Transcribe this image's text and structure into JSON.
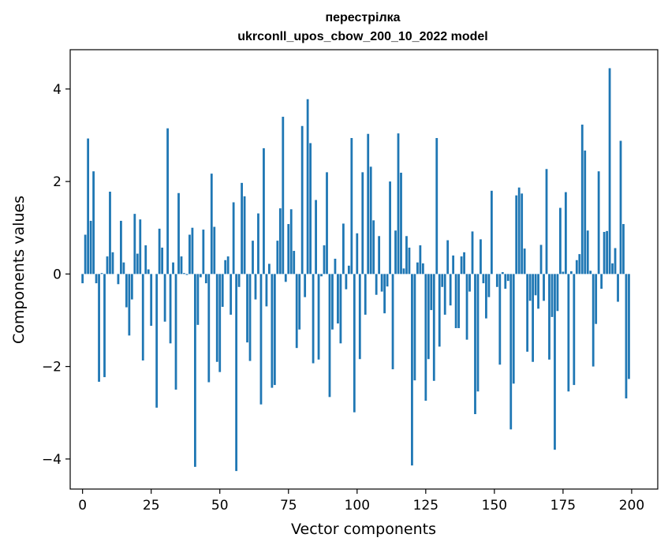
{
  "chart_data": {
    "type": "bar",
    "title": "перестрілка",
    "subtitle": "ukrconll_upos_cbow_200_10_2022 model",
    "xlabel": "Vector components",
    "ylabel": "Components values",
    "xlim": [
      -4.5,
      209.5
    ],
    "ylim": [
      -4.65,
      4.85
    ],
    "xticks": [
      0,
      25,
      50,
      75,
      100,
      125,
      150,
      175,
      200
    ],
    "xtick_labels": [
      "0",
      "25",
      "50",
      "75",
      "100",
      "125",
      "150",
      "175",
      "200"
    ],
    "yticks": [
      -4,
      -2,
      0,
      2,
      4
    ],
    "ytick_labels": [
      "−4",
      "−2",
      "0",
      "2",
      "4"
    ],
    "grid": false,
    "bar_color": "#1f77b4",
    "x": [
      0,
      1,
      2,
      3,
      4,
      5,
      6,
      7,
      8,
      9,
      10,
      11,
      12,
      13,
      14,
      15,
      16,
      17,
      18,
      19,
      20,
      21,
      22,
      23,
      24,
      25,
      26,
      27,
      28,
      29,
      30,
      31,
      32,
      33,
      34,
      35,
      36,
      37,
      38,
      39,
      40,
      41,
      42,
      43,
      44,
      45,
      46,
      47,
      48,
      49,
      50,
      51,
      52,
      53,
      54,
      55,
      56,
      57,
      58,
      59,
      60,
      61,
      62,
      63,
      64,
      65,
      66,
      67,
      68,
      69,
      70,
      71,
      72,
      73,
      74,
      75,
      76,
      77,
      78,
      79,
      80,
      81,
      82,
      83,
      84,
      85,
      86,
      87,
      88,
      89,
      90,
      91,
      92,
      93,
      94,
      95,
      96,
      97,
      98,
      99,
      100,
      101,
      102,
      103,
      104,
      105,
      106,
      107,
      108,
      109,
      110,
      111,
      112,
      113,
      114,
      115,
      116,
      117,
      118,
      119,
      120,
      121,
      122,
      123,
      124,
      125,
      126,
      127,
      128,
      129,
      130,
      131,
      132,
      133,
      134,
      135,
      136,
      137,
      138,
      139,
      140,
      141,
      142,
      143,
      144,
      145,
      146,
      147,
      148,
      149,
      150,
      151,
      152,
      153,
      154,
      155,
      156,
      157,
      158,
      159,
      160,
      161,
      162,
      163,
      164,
      165,
      166,
      167,
      168,
      169,
      170,
      171,
      172,
      173,
      174,
      175,
      176,
      177,
      178,
      179,
      180,
      181,
      182,
      183,
      184,
      185,
      186,
      187,
      188,
      189,
      190,
      191,
      192,
      193,
      194,
      195,
      196,
      197,
      198,
      199
    ],
    "values": [
      -0.2,
      0.85,
      2.93,
      1.15,
      2.22,
      -0.2,
      -2.33,
      0.02,
      -2.23,
      0.38,
      1.78,
      0.47,
      0.0,
      -0.22,
      1.15,
      0.25,
      -0.72,
      -1.33,
      -0.55,
      1.3,
      0.44,
      1.18,
      -1.87,
      0.62,
      0.1,
      -1.12,
      0.0,
      -2.89,
      0.98,
      0.57,
      -1.03,
      3.15,
      -1.5,
      0.25,
      -2.5,
      1.75,
      0.38,
      0.02,
      -0.02,
      0.85,
      1.0,
      -4.17,
      -1.1,
      -0.07,
      0.96,
      -0.2,
      -2.34,
      2.17,
      1.02,
      -1.9,
      -2.12,
      -0.71,
      0.3,
      0.38,
      -0.88,
      1.55,
      -4.26,
      -0.28,
      1.97,
      1.68,
      -1.48,
      -1.88,
      0.72,
      -0.55,
      1.31,
      -2.82,
      2.72,
      -0.7,
      0.22,
      -2.46,
      -2.4,
      0.72,
      1.42,
      3.4,
      -0.17,
      1.08,
      1.4,
      0.5,
      -1.6,
      -1.2,
      3.2,
      -0.5,
      3.78,
      2.83,
      -1.93,
      1.6,
      -1.85,
      -0.05,
      0.62,
      2.2,
      -2.66,
      -1.2,
      0.33,
      -1.07,
      -1.5,
      1.09,
      -0.33,
      0.18,
      2.94,
      -2.99,
      0.88,
      -1.84,
      2.2,
      -0.88,
      3.03,
      2.32,
      1.16,
      -0.45,
      0.82,
      -0.38,
      -0.85,
      -0.27,
      2.0,
      -2.06,
      0.94,
      3.04,
      2.19,
      0.12,
      0.82,
      0.57,
      -4.14,
      -2.3,
      0.25,
      0.62,
      0.23,
      -2.74,
      -1.84,
      -0.78,
      -2.31,
      2.94,
      -1.57,
      -0.28,
      -0.88,
      0.73,
      -0.68,
      0.4,
      -1.17,
      -1.17,
      0.38,
      0.47,
      -1.42,
      -0.38,
      0.92,
      -3.03,
      -2.54,
      0.75,
      -0.2,
      -0.96,
      -0.5,
      1.8,
      0.0,
      -0.28,
      -1.96,
      0.04,
      -0.32,
      -0.15,
      -3.36,
      -2.37,
      1.7,
      1.87,
      1.74,
      0.55,
      -1.68,
      -0.58,
      -1.9,
      -0.46,
      -0.75,
      0.63,
      -0.58,
      2.27,
      -1.85,
      -0.93,
      -3.8,
      -0.8,
      1.43,
      0.05,
      1.77,
      -2.54,
      0.06,
      -2.4,
      0.3,
      0.43,
      3.23,
      2.67,
      0.94,
      0.07,
      -2.0,
      -1.08,
      2.22,
      -0.32,
      0.91,
      0.93,
      4.45,
      0.23,
      0.56,
      -0.6,
      2.88,
      1.08,
      -2.69,
      -2.27
    ]
  }
}
